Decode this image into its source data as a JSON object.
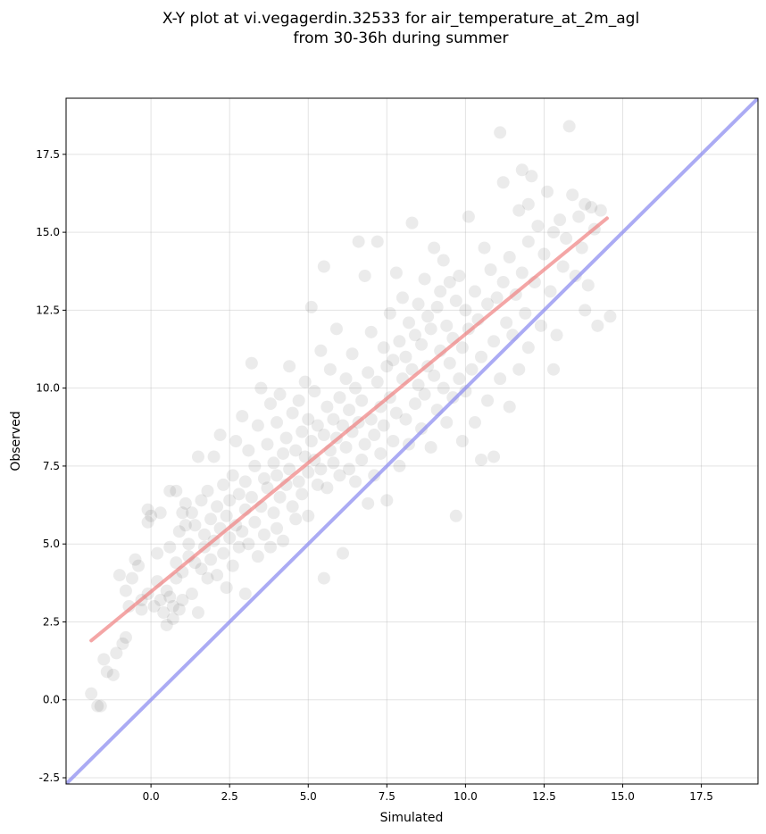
{
  "chart_data": {
    "type": "scatter",
    "title_lines": [
      "X-Y plot at vi.vegagerdin.32533 for air_temperature_at_2m_agl",
      "from 30-36h during summer"
    ],
    "xlabel": "Simulated",
    "ylabel": "Observed",
    "xlim": [
      -2.7,
      19.3
    ],
    "ylim": [
      -2.7,
      19.3
    ],
    "xticks": [
      0.0,
      2.5,
      5.0,
      7.5,
      10.0,
      12.5,
      15.0,
      17.5
    ],
    "yticks": [
      -2.5,
      0.0,
      2.5,
      5.0,
      7.5,
      10.0,
      12.5,
      15.0,
      17.5
    ],
    "xtick_labels": [
      "0.0",
      "2.5",
      "5.0",
      "7.5",
      "10.0",
      "12.5",
      "15.0",
      "17.5"
    ],
    "ytick_labels": [
      "-2.5",
      "0.0",
      "2.5",
      "5.0",
      "7.5",
      "10.0",
      "12.5",
      "15.0",
      "17.5"
    ],
    "grid": true,
    "point_color": "#1e1e1e",
    "regression_line": {
      "color": "#f08080",
      "x": [
        -1.9,
        14.5
      ],
      "y": [
        1.9,
        15.45
      ]
    },
    "identity_line": {
      "color": "#8f8ff0",
      "x": [
        -2.7,
        19.3
      ],
      "y": [
        -2.7,
        19.3
      ]
    },
    "points": [
      [
        -1.9,
        0.2
      ],
      [
        -1.7,
        -0.2
      ],
      [
        -1.6,
        -0.2
      ],
      [
        -1.5,
        1.3
      ],
      [
        -1.4,
        0.9
      ],
      [
        -1.2,
        0.8
      ],
      [
        -1.1,
        1.5
      ],
      [
        -1.0,
        4.0
      ],
      [
        -0.9,
        1.8
      ],
      [
        -0.8,
        2.0
      ],
      [
        -0.8,
        3.5
      ],
      [
        -0.7,
        3.0
      ],
      [
        -0.6,
        3.9
      ],
      [
        -0.5,
        4.5
      ],
      [
        -0.4,
        4.3
      ],
      [
        -0.3,
        3.2
      ],
      [
        -0.3,
        2.9
      ],
      [
        -0.1,
        3.4
      ],
      [
        -0.1,
        5.7
      ],
      [
        -0.1,
        6.1
      ],
      [
        0.0,
        5.9
      ],
      [
        0.1,
        3.0
      ],
      [
        0.2,
        3.8
      ],
      [
        0.2,
        4.7
      ],
      [
        0.3,
        6.0
      ],
      [
        0.3,
        3.2
      ],
      [
        0.4,
        2.8
      ],
      [
        0.5,
        2.4
      ],
      [
        0.5,
        3.5
      ],
      [
        0.6,
        3.3
      ],
      [
        0.6,
        4.9
      ],
      [
        0.6,
        6.7
      ],
      [
        0.7,
        3.0
      ],
      [
        0.7,
        2.6
      ],
      [
        0.8,
        3.9
      ],
      [
        0.8,
        4.4
      ],
      [
        0.8,
        6.7
      ],
      [
        0.9,
        2.9
      ],
      [
        0.9,
        5.4
      ],
      [
        1.0,
        3.2
      ],
      [
        1.0,
        6.0
      ],
      [
        1.0,
        4.1
      ],
      [
        1.1,
        5.6
      ],
      [
        1.1,
        6.3
      ],
      [
        1.2,
        4.6
      ],
      [
        1.2,
        5.0
      ],
      [
        1.3,
        3.4
      ],
      [
        1.3,
        6.0
      ],
      [
        1.4,
        4.4
      ],
      [
        1.4,
        5.6
      ],
      [
        1.5,
        2.8
      ],
      [
        1.5,
        7.8
      ],
      [
        1.6,
        4.2
      ],
      [
        1.6,
        6.4
      ],
      [
        1.7,
        4.9
      ],
      [
        1.7,
        5.3
      ],
      [
        1.8,
        3.9
      ],
      [
        1.8,
        6.7
      ],
      [
        1.9,
        5.8
      ],
      [
        1.9,
        4.5
      ],
      [
        2.0,
        7.8
      ],
      [
        2.0,
        5.1
      ],
      [
        2.1,
        6.2
      ],
      [
        2.1,
        4.0
      ],
      [
        2.2,
        5.5
      ],
      [
        2.2,
        8.5
      ],
      [
        2.3,
        6.9
      ],
      [
        2.3,
        4.7
      ],
      [
        2.4,
        5.9
      ],
      [
        2.4,
        3.6
      ],
      [
        2.5,
        6.4
      ],
      [
        2.5,
        5.2
      ],
      [
        2.6,
        7.2
      ],
      [
        2.6,
        4.3
      ],
      [
        2.7,
        8.3
      ],
      [
        2.7,
        5.6
      ],
      [
        2.8,
        6.6
      ],
      [
        2.8,
        4.9
      ],
      [
        2.9,
        9.1
      ],
      [
        2.9,
        5.4
      ],
      [
        3.0,
        7.0
      ],
      [
        3.0,
        3.4
      ],
      [
        3.0,
        6.1
      ],
      [
        3.1,
        8.0
      ],
      [
        3.1,
        5.0
      ],
      [
        3.2,
        10.8
      ],
      [
        3.2,
        6.5
      ],
      [
        3.3,
        5.7
      ],
      [
        3.3,
        7.5
      ],
      [
        3.4,
        4.6
      ],
      [
        3.4,
        8.8
      ],
      [
        3.5,
        6.2
      ],
      [
        3.5,
        10.0
      ],
      [
        3.6,
        7.1
      ],
      [
        3.6,
        5.3
      ],
      [
        3.7,
        8.2
      ],
      [
        3.7,
        6.8
      ],
      [
        3.8,
        4.9
      ],
      [
        3.8,
        9.5
      ],
      [
        3.9,
        7.6
      ],
      [
        3.9,
        6.0
      ],
      [
        4.0,
        8.9
      ],
      [
        4.0,
        5.5
      ],
      [
        4.0,
        7.2
      ],
      [
        4.1,
        6.5
      ],
      [
        4.1,
        9.8
      ],
      [
        4.2,
        7.9
      ],
      [
        4.2,
        5.1
      ],
      [
        4.3,
        8.4
      ],
      [
        4.3,
        6.9
      ],
      [
        4.4,
        10.7
      ],
      [
        4.4,
        7.4
      ],
      [
        4.5,
        6.2
      ],
      [
        4.5,
        9.2
      ],
      [
        4.6,
        8.0
      ],
      [
        4.6,
        5.8
      ],
      [
        4.7,
        7.0
      ],
      [
        4.7,
        9.6
      ],
      [
        4.8,
        8.6
      ],
      [
        4.8,
        6.6
      ],
      [
        4.9,
        7.8
      ],
      [
        4.9,
        10.2
      ],
      [
        5.0,
        9.0
      ],
      [
        5.0,
        7.3
      ],
      [
        5.0,
        5.9
      ],
      [
        5.1,
        8.3
      ],
      [
        5.1,
        12.6
      ],
      [
        5.2,
        7.7
      ],
      [
        5.2,
        9.9
      ],
      [
        5.3,
        6.9
      ],
      [
        5.3,
        8.8
      ],
      [
        5.4,
        11.2
      ],
      [
        5.4,
        7.4
      ],
      [
        5.5,
        8.5
      ],
      [
        5.5,
        13.9
      ],
      [
        5.5,
        3.9
      ],
      [
        5.6,
        9.4
      ],
      [
        5.6,
        6.8
      ],
      [
        5.7,
        8.0
      ],
      [
        5.7,
        10.6
      ],
      [
        5.8,
        7.6
      ],
      [
        5.8,
        9.0
      ],
      [
        5.9,
        8.4
      ],
      [
        5.9,
        11.9
      ],
      [
        6.0,
        7.2
      ],
      [
        6.0,
        9.7
      ],
      [
        6.1,
        8.8
      ],
      [
        6.1,
        4.7
      ],
      [
        6.2,
        10.3
      ],
      [
        6.2,
        8.1
      ],
      [
        6.3,
        7.4
      ],
      [
        6.3,
        9.3
      ],
      [
        6.4,
        11.1
      ],
      [
        6.4,
        8.6
      ],
      [
        6.5,
        7.0
      ],
      [
        6.5,
        10.0
      ],
      [
        6.6,
        8.9
      ],
      [
        6.6,
        14.7
      ],
      [
        6.7,
        7.7
      ],
      [
        6.7,
        9.6
      ],
      [
        6.8,
        13.6
      ],
      [
        6.8,
        8.2
      ],
      [
        6.9,
        10.5
      ],
      [
        6.9,
        6.3
      ],
      [
        7.0,
        9.0
      ],
      [
        7.0,
        11.8
      ],
      [
        7.1,
        8.5
      ],
      [
        7.1,
        7.2
      ],
      [
        7.2,
        10.2
      ],
      [
        7.2,
        14.7
      ],
      [
        7.3,
        9.4
      ],
      [
        7.3,
        7.9
      ],
      [
        7.4,
        11.3
      ],
      [
        7.4,
        8.8
      ],
      [
        7.5,
        10.7
      ],
      [
        7.5,
        6.4
      ],
      [
        7.6,
        9.7
      ],
      [
        7.6,
        12.4
      ],
      [
        7.7,
        8.3
      ],
      [
        7.7,
        10.9
      ],
      [
        7.8,
        13.7
      ],
      [
        7.8,
        9.2
      ],
      [
        7.9,
        11.5
      ],
      [
        7.9,
        7.5
      ],
      [
        8.0,
        10.3
      ],
      [
        8.0,
        12.9
      ],
      [
        8.1,
        9.0
      ],
      [
        8.1,
        11.0
      ],
      [
        8.2,
        8.2
      ],
      [
        8.2,
        12.1
      ],
      [
        8.3,
        10.6
      ],
      [
        8.3,
        15.3
      ],
      [
        8.4,
        11.7
      ],
      [
        8.4,
        9.5
      ],
      [
        8.5,
        12.7
      ],
      [
        8.5,
        10.1
      ],
      [
        8.6,
        8.7
      ],
      [
        8.6,
        11.4
      ],
      [
        8.7,
        13.5
      ],
      [
        8.7,
        9.8
      ],
      [
        8.8,
        12.3
      ],
      [
        8.8,
        10.7
      ],
      [
        8.9,
        8.1
      ],
      [
        8.9,
        11.9
      ],
      [
        9.0,
        14.5
      ],
      [
        9.0,
        10.4
      ],
      [
        9.1,
        12.6
      ],
      [
        9.1,
        9.3
      ],
      [
        9.2,
        11.2
      ],
      [
        9.2,
        13.1
      ],
      [
        9.3,
        10.0
      ],
      [
        9.3,
        14.1
      ],
      [
        9.4,
        12.0
      ],
      [
        9.4,
        8.9
      ],
      [
        9.5,
        10.8
      ],
      [
        9.5,
        13.4
      ],
      [
        9.6,
        11.6
      ],
      [
        9.6,
        9.7
      ],
      [
        9.7,
        12.8
      ],
      [
        9.7,
        5.9
      ],
      [
        9.8,
        10.3
      ],
      [
        9.8,
        13.6
      ],
      [
        9.9,
        11.3
      ],
      [
        9.9,
        8.3
      ],
      [
        10.0,
        12.5
      ],
      [
        10.0,
        9.9
      ],
      [
        10.1,
        15.5
      ],
      [
        10.1,
        11.9
      ],
      [
        10.2,
        10.6
      ],
      [
        10.3,
        13.1
      ],
      [
        10.3,
        8.9
      ],
      [
        10.4,
        12.2
      ],
      [
        10.5,
        7.7
      ],
      [
        10.5,
        11.0
      ],
      [
        10.6,
        14.5
      ],
      [
        10.7,
        12.7
      ],
      [
        10.7,
        9.6
      ],
      [
        10.8,
        13.8
      ],
      [
        10.9,
        11.5
      ],
      [
        10.9,
        7.8
      ],
      [
        11.0,
        12.9
      ],
      [
        11.1,
        18.2
      ],
      [
        11.1,
        10.3
      ],
      [
        11.2,
        13.4
      ],
      [
        11.2,
        16.6
      ],
      [
        11.3,
        12.1
      ],
      [
        11.4,
        9.4
      ],
      [
        11.4,
        14.2
      ],
      [
        11.5,
        11.7
      ],
      [
        11.6,
        13.0
      ],
      [
        11.7,
        10.6
      ],
      [
        11.7,
        15.7
      ],
      [
        11.8,
        13.7
      ],
      [
        11.8,
        17.0
      ],
      [
        11.9,
        12.4
      ],
      [
        12.0,
        14.7
      ],
      [
        12.0,
        15.9
      ],
      [
        12.0,
        11.3
      ],
      [
        12.1,
        16.8
      ],
      [
        12.2,
        13.4
      ],
      [
        12.3,
        15.2
      ],
      [
        12.4,
        12.0
      ],
      [
        12.5,
        14.3
      ],
      [
        12.6,
        16.3
      ],
      [
        12.7,
        13.1
      ],
      [
        12.8,
        10.6
      ],
      [
        12.8,
        15.0
      ],
      [
        12.9,
        11.7
      ],
      [
        13.0,
        15.4
      ],
      [
        13.1,
        13.9
      ],
      [
        13.2,
        14.8
      ],
      [
        13.3,
        18.4
      ],
      [
        13.4,
        16.2
      ],
      [
        13.5,
        13.6
      ],
      [
        13.6,
        15.5
      ],
      [
        13.7,
        14.5
      ],
      [
        13.8,
        12.5
      ],
      [
        13.8,
        15.9
      ],
      [
        13.9,
        13.3
      ],
      [
        14.0,
        15.8
      ],
      [
        14.1,
        15.1
      ],
      [
        14.2,
        12.0
      ],
      [
        14.3,
        15.7
      ],
      [
        14.6,
        12.3
      ]
    ]
  }
}
